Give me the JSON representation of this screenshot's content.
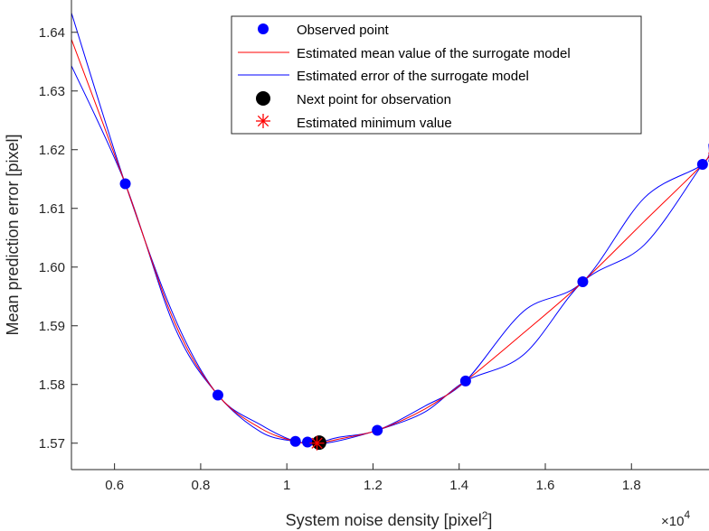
{
  "chart_data": {
    "type": "line",
    "xlabel_main": "System noise density [pixel",
    "xlabel_sup": "2",
    "xlabel_end": "]",
    "ylabel": "Mean prediction error [pixel]",
    "x_multiplier_base": "×10",
    "x_multiplier_exp": "4",
    "xlim": [
      5000,
      19800
    ],
    "ylim": [
      1.5655,
      1.6455
    ],
    "x_ticks": [
      6000,
      8000,
      10000,
      12000,
      14000,
      16000,
      18000
    ],
    "x_tick_labels": [
      "0.6",
      "0.8",
      "1",
      "1.2",
      "1.4",
      "1.6",
      "1.8"
    ],
    "y_ticks": [
      1.57,
      1.58,
      1.59,
      1.6,
      1.61,
      1.62,
      1.63,
      1.64
    ],
    "y_tick_labels": [
      "1.57",
      "1.58",
      "1.59",
      "1.60",
      "1.61",
      "1.62",
      "1.63",
      "1.64"
    ],
    "grid": false,
    "legend_position": "top-right",
    "colors": {
      "observed": "#0000ff",
      "mean": "#ff0000",
      "error": "#0000ff",
      "next": "#000000",
      "minimum": "#ff0000"
    },
    "series": [
      {
        "name": "Observed point",
        "kind": "scatter",
        "x": [
          6250,
          8400,
          10200,
          10480,
          12100,
          14150,
          16870,
          19650
        ],
        "y": [
          1.6142,
          1.5782,
          1.5703,
          1.5702,
          1.5722,
          1.5806,
          1.5975,
          1.6175
        ]
      },
      {
        "name": "Estimated mean value of the surrogate model",
        "kind": "line",
        "x": [
          5000,
          6250,
          7400,
          8400,
          9400,
          10200,
          10700,
          11200,
          12100,
          13200,
          14150,
          15500,
          16870,
          18300,
          19650,
          19800
        ],
        "y": [
          1.6388,
          1.6142,
          1.5905,
          1.5782,
          1.5725,
          1.5703,
          1.57,
          1.5707,
          1.5722,
          1.5758,
          1.5806,
          1.5888,
          1.5975,
          1.6078,
          1.6175,
          1.6195
        ]
      },
      {
        "name": "Estimated error of the surrogate model",
        "kind": "band",
        "x": [
          5000,
          6250,
          7400,
          8400,
          9400,
          10200,
          10700,
          11200,
          12100,
          13200,
          14150,
          15500,
          16870,
          18300,
          19650,
          19800
        ],
        "upper": [
          1.6433,
          1.6142,
          1.5913,
          1.5782,
          1.5731,
          1.5703,
          1.5701,
          1.571,
          1.5722,
          1.5763,
          1.5806,
          1.5925,
          1.5975,
          1.6118,
          1.6175,
          1.621
        ],
        "lower": [
          1.6343,
          1.6142,
          1.5897,
          1.5782,
          1.5719,
          1.5703,
          1.5699,
          1.5704,
          1.5722,
          1.5753,
          1.5806,
          1.5851,
          1.5975,
          1.6038,
          1.6175,
          1.618
        ]
      },
      {
        "name": "Next point for observation",
        "kind": "scatter",
        "x": [
          10750
        ],
        "y": [
          1.5701
        ]
      },
      {
        "name": "Estimated minimum value",
        "kind": "scatter",
        "x": [
          10700
        ],
        "y": [
          1.57
        ]
      }
    ]
  }
}
